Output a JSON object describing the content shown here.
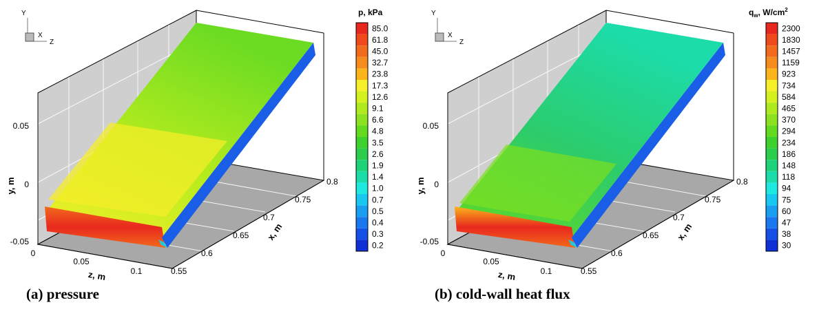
{
  "panels": [
    {
      "id": "a",
      "caption": "(a) pressure",
      "legend_title_main": "p, kPa",
      "legend_title_sup": "",
      "legend_levels": [
        "85.0",
        "61.8",
        "45.0",
        "32.7",
        "23.8",
        "17.3",
        "12.6",
        "9.1",
        "6.6",
        "4.8",
        "3.5",
        "2.6",
        "1.9",
        "1.4",
        "1.0",
        "0.7",
        "0.5",
        "0.4",
        "0.3",
        "0.2"
      ],
      "y_ticks": [
        "0.05",
        "0",
        "-0.05"
      ],
      "z_ticks": [
        "0",
        "0.05",
        "0.1"
      ],
      "x_ticks": [
        "0.55",
        "0.6",
        "0.65",
        "0.7",
        "0.75",
        "0.8"
      ],
      "y_label": "y, m",
      "z_label": "z, m",
      "x_label": "x, m",
      "triad": {
        "y": "Y",
        "x": "X",
        "z": "Z"
      }
    },
    {
      "id": "b",
      "caption": "(b) cold-wall heat flux",
      "legend_title_main": "q",
      "legend_title_sub": "w",
      "legend_title_rest": ", W/cm",
      "legend_title_sup": "2",
      "legend_levels": [
        "2300",
        "1830",
        "1457",
        "1159",
        "923",
        "734",
        "584",
        "465",
        "370",
        "294",
        "234",
        "186",
        "148",
        "118",
        "94",
        "75",
        "60",
        "47",
        "38",
        "30"
      ],
      "y_ticks": [
        "0.05",
        "0",
        "-0.05"
      ],
      "z_ticks": [
        "0",
        "0.05",
        "0.1"
      ],
      "x_ticks": [
        "0.55",
        "0.6",
        "0.65",
        "0.7",
        "0.75",
        "0.8"
      ],
      "y_label": "y, m",
      "z_label": "z, m",
      "x_label": "x, m",
      "triad": {
        "y": "Y",
        "x": "X",
        "z": "Z"
      }
    }
  ],
  "colormap": [
    "#e8281e",
    "#ee4a1c",
    "#f26a1c",
    "#f68c1e",
    "#fbb41a",
    "#f6f02a",
    "#d4f01e",
    "#aeea1e",
    "#8ce220",
    "#62da20",
    "#3ed02c",
    "#2ccc4c",
    "#1ed27a",
    "#1cdcaa",
    "#1ee8e0",
    "#18c8f0",
    "#1a9ef0",
    "#1a78ee",
    "#1450e6",
    "#1030d6"
  ]
}
